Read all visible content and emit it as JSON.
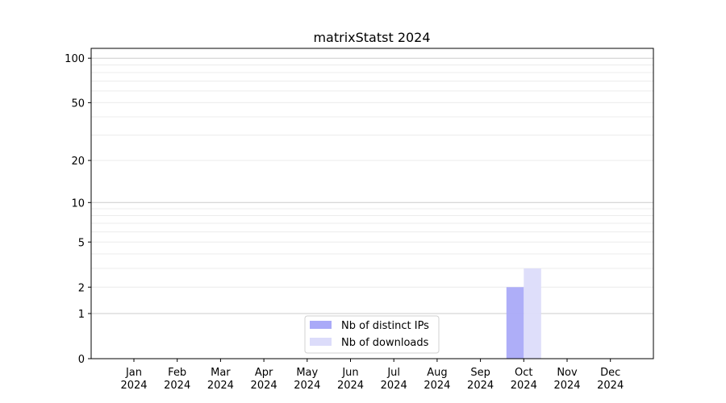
{
  "chart_data": {
    "type": "bar",
    "title": "matrixStatst 2024",
    "xlabel": "",
    "ylabel": "",
    "y_scale": "log1p",
    "ylim": [
      0,
      116
    ],
    "grid": "horizontal major and minor",
    "legend_position": "lower-center",
    "categories": [
      "Jan\n2024",
      "Feb\n2024",
      "Mar\n2024",
      "Apr\n2024",
      "May\n2024",
      "Jun\n2024",
      "Jul\n2024",
      "Aug\n2024",
      "Sep\n2024",
      "Oct\n2024",
      "Nov\n2024",
      "Dec\n2024"
    ],
    "y_ticks": [
      0,
      1,
      2,
      5,
      10,
      20,
      50,
      100
    ],
    "series": [
      {
        "name": "Nb of distinct IPs",
        "color": "#aaaaf8",
        "values": [
          0,
          0,
          0,
          0,
          0,
          0,
          0,
          0,
          0,
          2,
          0,
          0
        ]
      },
      {
        "name": "Nb of downloads",
        "color": "#dcdcfa",
        "values": [
          0,
          0,
          0,
          0,
          0,
          0,
          0,
          0,
          0,
          3,
          0,
          0
        ]
      }
    ]
  }
}
